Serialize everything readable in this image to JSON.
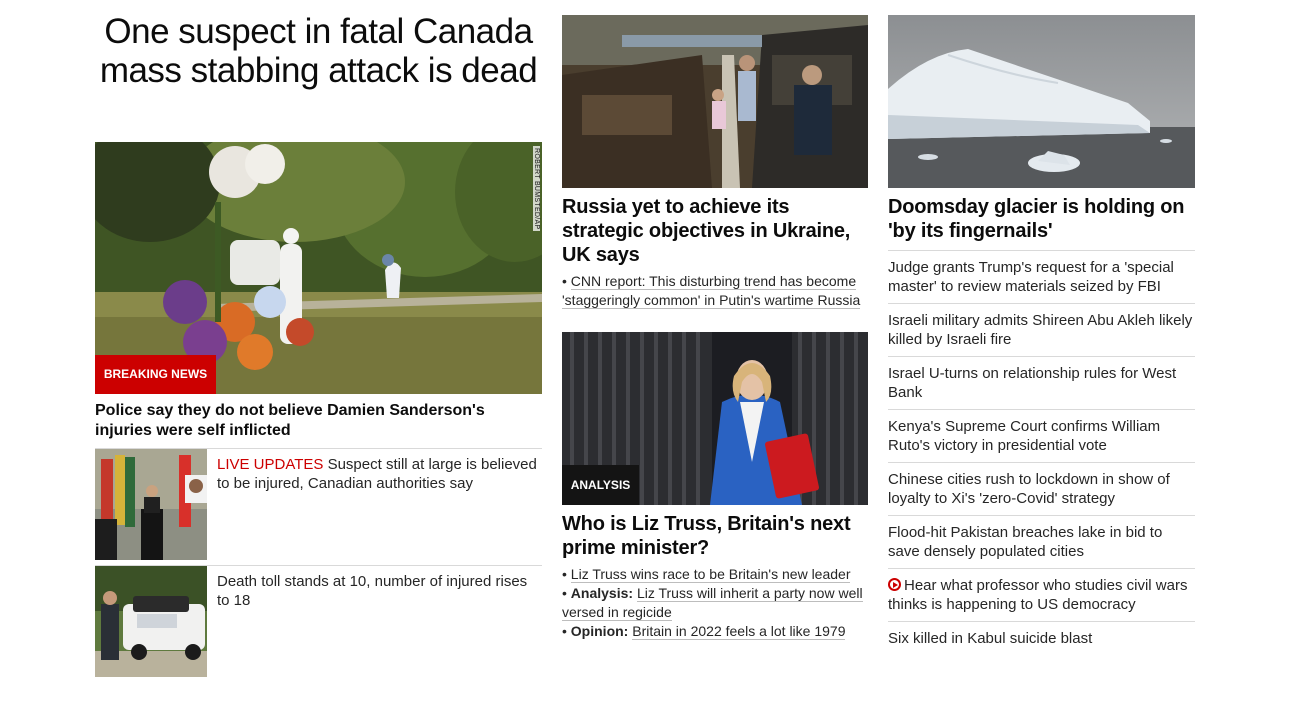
{
  "lead": {
    "headline": "One suspect in fatal Canada mass stabbing attack is dead",
    "photo_credit": "ROBERT BUMSTED/AP",
    "badge": "BREAKING NEWS",
    "subheadline": "Police say they do not believe Damien Sanderson's injuries were self inflicted",
    "stories": [
      {
        "prefix": "LIVE UPDATES",
        "text": " Suspect still at large is believed to be injured, Canadian authorities say"
      },
      {
        "prefix": "",
        "text": "Death toll stands at 10, number of injured rises to 18"
      }
    ]
  },
  "ukraine": {
    "headline": "Russia yet to achieve its strategic objectives in Ukraine, UK says",
    "bullet": "CNN report: This disturbing trend has become 'staggeringly common' in Putin's wartime Russia"
  },
  "truss": {
    "badge": "ANALYSIS",
    "headline": "Who is Liz Truss, Britain's next prime minister?",
    "bullets": [
      {
        "label": "",
        "text": "Liz Truss wins race to be Britain's new leader"
      },
      {
        "label": "Analysis:",
        "text": "Liz Truss will inherit a party now well versed in regicide"
      },
      {
        "label": "Opinion:",
        "text": "Britain in 2022 feels a lot like 1979"
      }
    ]
  },
  "glacier": {
    "headline": "Doomsday glacier is holding on 'by its fingernails'"
  },
  "headlines": [
    {
      "text": "Judge grants Trump's request for a 'special master' to review materials seized by FBI"
    },
    {
      "text": "Israeli military admits Shireen Abu Akleh likely killed by Israeli fire"
    },
    {
      "text": "Israel U-turns on relationship rules for West Bank"
    },
    {
      "text": "Kenya's Supreme Court confirms William Ruto's victory in presidential vote"
    },
    {
      "text": "Chinese cities rush to lockdown in show of loyalty to Xi's 'zero-Covid' strategy"
    },
    {
      "text": "Flood-hit Pakistan breaches lake in bid to save densely populated cities"
    },
    {
      "text": "Hear what professor who studies civil wars thinks is happening to US democracy",
      "icon": "play-video-icon"
    },
    {
      "text": "Six killed in Kabul suicide blast"
    }
  ],
  "colors": {
    "breaking": "#cc0000",
    "analysis": "#141414",
    "live": "#cc0000"
  }
}
